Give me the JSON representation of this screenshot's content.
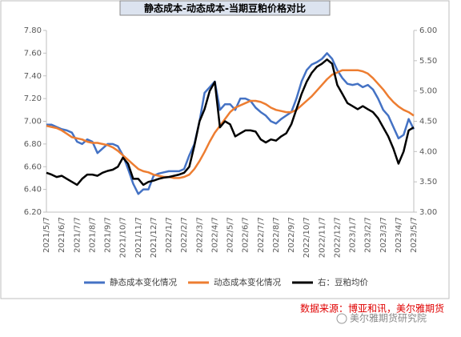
{
  "chart_data": {
    "type": "line",
    "title": "静态成本-动态成本-当期豆粕价格对比",
    "categories": [
      "2021/5/7",
      null,
      null,
      "2021/6/7",
      null,
      null,
      "2021/7/7",
      null,
      null,
      "2021/8/7",
      null,
      null,
      "2021/9/7",
      null,
      null,
      "2021/10/7",
      null,
      null,
      "2021/11/7",
      null,
      null,
      "2021/12/7",
      null,
      null,
      "2022/1/7",
      null,
      null,
      "2022/2/7",
      null,
      null,
      "2022/3/7",
      null,
      null,
      "2022/4/7",
      null,
      null,
      "2022/5/7",
      null,
      null,
      "2022/6/7",
      null,
      null,
      "2022/7/7",
      null,
      null,
      "2022/8/7",
      null,
      null,
      "2022/9/7",
      null,
      null,
      "2022/10/7",
      null,
      null,
      "2022/11/7",
      null,
      null,
      "2022/12/7",
      null,
      null,
      "2023/1/7",
      null,
      null,
      "2023/2/7",
      null,
      null,
      "2023/3/7",
      null,
      null,
      "2023/4/7",
      null,
      null,
      "2023/5/7"
    ],
    "series": [
      {
        "name": "静态成本变化情况",
        "color": "#4472c4",
        "values": [
          6.97,
          6.97,
          6.95,
          6.93,
          6.92,
          6.9,
          6.82,
          6.8,
          6.84,
          6.82,
          6.72,
          6.76,
          6.8,
          6.8,
          6.78,
          6.7,
          6.58,
          6.45,
          6.36,
          6.4,
          6.4,
          6.52,
          6.54,
          6.55,
          6.56,
          6.56,
          6.56,
          6.58,
          6.7,
          6.8,
          7.0,
          7.25,
          7.3,
          7.35,
          7.1,
          7.15,
          7.15,
          7.1,
          7.2,
          7.2,
          7.18,
          7.12,
          7.08,
          7.05,
          7.0,
          6.98,
          7.02,
          7.05,
          7.08,
          7.2,
          7.35,
          7.45,
          7.5,
          7.52,
          7.55,
          7.6,
          7.55,
          7.45,
          7.38,
          7.33,
          7.32,
          7.33,
          7.3,
          7.32,
          7.28,
          7.2,
          7.1,
          7.05,
          6.95,
          6.85,
          6.88,
          7.02,
          6.93
        ]
      },
      {
        "name": "动态成本变化情况",
        "color": "#ed7d31",
        "values": [
          6.96,
          6.95,
          6.94,
          6.92,
          6.89,
          6.86,
          6.85,
          6.84,
          6.82,
          6.81,
          6.81,
          6.8,
          6.79,
          6.77,
          6.74,
          6.7,
          6.66,
          6.62,
          6.58,
          6.56,
          6.55,
          6.53,
          6.52,
          6.51,
          6.51,
          6.5,
          6.5,
          6.51,
          6.53,
          6.58,
          6.65,
          6.73,
          6.82,
          6.9,
          6.96,
          7.02,
          7.08,
          7.12,
          7.14,
          7.16,
          7.18,
          7.18,
          7.17,
          7.15,
          7.12,
          7.1,
          7.09,
          7.08,
          7.08,
          7.1,
          7.14,
          7.18,
          7.22,
          7.27,
          7.32,
          7.37,
          7.41,
          7.43,
          7.45,
          7.45,
          7.45,
          7.45,
          7.44,
          7.42,
          7.38,
          7.33,
          7.28,
          7.22,
          7.17,
          7.13,
          7.1,
          7.08,
          7.05
        ]
      },
      {
        "name": "右：豆粕均价",
        "color": "#000000",
        "axis": "y2",
        "values": [
          3.65,
          3.62,
          3.58,
          3.6,
          3.55,
          3.5,
          3.45,
          3.55,
          3.62,
          3.62,
          3.6,
          3.65,
          3.68,
          3.7,
          3.75,
          3.9,
          3.8,
          3.55,
          3.55,
          3.45,
          3.5,
          3.52,
          3.55,
          3.57,
          3.58,
          3.6,
          3.62,
          3.65,
          3.75,
          4.1,
          4.5,
          4.7,
          5.0,
          5.15,
          4.4,
          4.5,
          4.45,
          4.25,
          4.3,
          4.35,
          4.35,
          4.33,
          4.2,
          4.15,
          4.2,
          4.18,
          4.25,
          4.3,
          4.45,
          4.7,
          4.95,
          5.15,
          5.3,
          5.4,
          5.45,
          5.52,
          5.45,
          5.1,
          4.95,
          4.8,
          4.75,
          4.7,
          4.75,
          4.7,
          4.65,
          4.55,
          4.4,
          4.25,
          4.05,
          3.8,
          4.0,
          4.35,
          4.4
        ]
      }
    ],
    "ylim": [
      6.2,
      7.8
    ],
    "yticks": [
      {
        "value": 6.2,
        "label": "6.20"
      },
      {
        "value": 6.4,
        "label": "6.40"
      },
      {
        "value": 6.6,
        "label": "6.60"
      },
      {
        "value": 6.8,
        "label": "6.80"
      },
      {
        "value": 7.0,
        "label": "7.00"
      },
      {
        "value": 7.2,
        "label": "7.20"
      },
      {
        "value": 7.4,
        "label": "7.40"
      },
      {
        "value": 7.6,
        "label": "7.60"
      },
      {
        "value": 7.8,
        "label": "7.80"
      }
    ],
    "y2lim": [
      3,
      6
    ],
    "y2ticks": [
      {
        "value": 3,
        "label": "3.00"
      },
      {
        "value": 3.5,
        "label": "3.50"
      },
      {
        "value": 4,
        "label": "4.00"
      },
      {
        "value": 4.5,
        "label": "4.50"
      },
      {
        "value": 5,
        "label": "5.00"
      },
      {
        "value": 5.5,
        "label": "5.50"
      },
      {
        "value": 6,
        "label": "6.00"
      }
    ],
    "annotations": [
      "数据来源：博亚和讯，美尔雅期货",
      "美尔雅期货研究院"
    ]
  }
}
